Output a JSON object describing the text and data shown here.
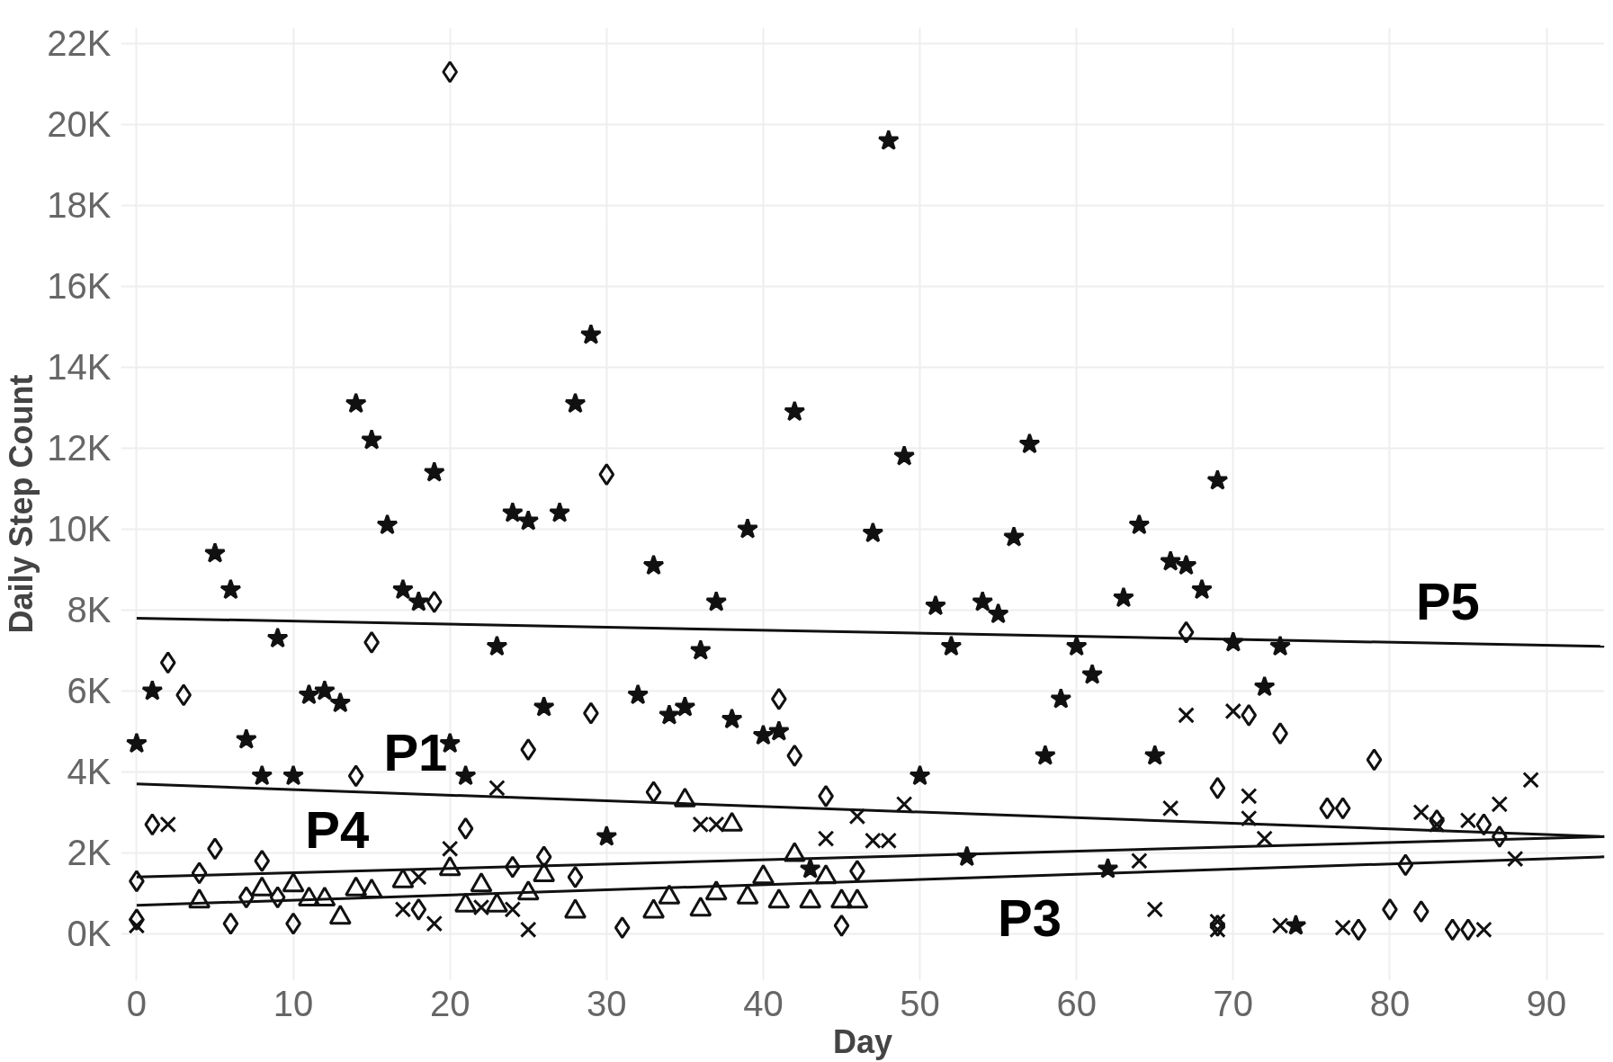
{
  "chart_data": {
    "type": "scatter",
    "xlabel": "Day",
    "ylabel": "Daily Step Count",
    "xlim": [
      -1,
      93.7
    ],
    "ylim": [
      -1160,
      22400
    ],
    "xticks": [
      0,
      10,
      20,
      30,
      40,
      50,
      60,
      70,
      80,
      90
    ],
    "yticks": [
      {
        "value": 0,
        "label": "0K"
      },
      {
        "value": 2000,
        "label": "2K"
      },
      {
        "value": 4000,
        "label": "4K"
      },
      {
        "value": 6000,
        "label": "6K"
      },
      {
        "value": 8000,
        "label": "8K"
      },
      {
        "value": 10000,
        "label": "10K"
      },
      {
        "value": 12000,
        "label": "12K"
      },
      {
        "value": 14000,
        "label": "14K"
      },
      {
        "value": 16000,
        "label": "16K"
      },
      {
        "value": 18000,
        "label": "18K"
      },
      {
        "value": 20000,
        "label": "20K"
      },
      {
        "value": 22000,
        "label": "22K"
      }
    ],
    "grid": true,
    "series": [
      {
        "color": "#111111",
        "marker": "star",
        "x": [
          0,
          1,
          5,
          6,
          7,
          8,
          9,
          10,
          11,
          12,
          13,
          14,
          15,
          16,
          17,
          18,
          19,
          20,
          21,
          23,
          24,
          25,
          26,
          27,
          28,
          29,
          30,
          32,
          33,
          34,
          35,
          36,
          37,
          38,
          39,
          40,
          41,
          42,
          43,
          47,
          48,
          49,
          50,
          51,
          52,
          53,
          54,
          55,
          56,
          57,
          58,
          59,
          60,
          61,
          62,
          63,
          64,
          65,
          66,
          67,
          68,
          69,
          70,
          72,
          73,
          74
        ],
        "values": [
          4700,
          6000,
          9400,
          8500,
          4800,
          3900,
          7300,
          3900,
          5900,
          6000,
          5700,
          13100,
          12200,
          10100,
          8500,
          8200,
          11400,
          4700,
          3900,
          7100,
          10400,
          10200,
          5600,
          10400,
          13100,
          14800,
          2400,
          5900,
          9100,
          5400,
          5600,
          7000,
          8200,
          5300,
          10000,
          4900,
          5000,
          12900,
          1600,
          9900,
          19600,
          11800,
          3900,
          8100,
          7100,
          1900,
          8200,
          7900,
          9800,
          12100,
          4400,
          5800,
          7100,
          6400,
          1600,
          8300,
          10100,
          4400,
          9200,
          9100,
          8500,
          11200,
          7200,
          6100,
          7100,
          200
        ]
      },
      {
        "color": "#111111",
        "marker": "diamond",
        "x": [
          0,
          0,
          1,
          2,
          3,
          4,
          5,
          6,
          7,
          8,
          9,
          10,
          14,
          15,
          18,
          19,
          20,
          21,
          24,
          25,
          26,
          28,
          29,
          30,
          31,
          33,
          41,
          42,
          44,
          45,
          46,
          67,
          69,
          69,
          71,
          73,
          76,
          77,
          78,
          79,
          80,
          81,
          82,
          83,
          84,
          85,
          86,
          87
        ],
        "values": [
          1300,
          350,
          2700,
          6700,
          5900,
          1500,
          2100,
          250,
          900,
          1800,
          900,
          250,
          3900,
          7200,
          600,
          8200,
          21300,
          2600,
          1650,
          4550,
          1900,
          1400,
          5450,
          11350,
          150,
          3500,
          5800,
          4400,
          3400,
          200,
          1550,
          7450,
          3600,
          200,
          5400,
          4950,
          3100,
          3100,
          100,
          4300,
          600,
          1700,
          550,
          2800,
          100,
          100,
          2700,
          2400
        ]
      },
      {
        "color": "#111111",
        "marker": "cross",
        "x": [
          0,
          2,
          17,
          18,
          19,
          20,
          22,
          23,
          24,
          25,
          36,
          37,
          44,
          46,
          47,
          48,
          49,
          64,
          65,
          66,
          67,
          69,
          69,
          70,
          71,
          71,
          72,
          73,
          77,
          82,
          83,
          85,
          86,
          87,
          88,
          89
        ],
        "values": [
          200,
          2700,
          600,
          1400,
          250,
          2100,
          650,
          3600,
          600,
          100,
          2700,
          2700,
          2350,
          2900,
          2300,
          2300,
          3200,
          1800,
          600,
          3100,
          5400,
          100,
          300,
          5500,
          2850,
          3400,
          2350,
          200,
          150,
          3000,
          2700,
          2800,
          100,
          3200,
          1850,
          3800
        ]
      },
      {
        "color": "#111111",
        "marker": "triangle",
        "x": [
          4,
          8,
          10,
          11,
          12,
          13,
          14,
          15,
          17,
          20,
          21,
          22,
          23,
          25,
          26,
          28,
          33,
          34,
          35,
          36,
          37,
          38,
          39,
          40,
          41,
          42,
          43,
          44,
          45,
          46
        ],
        "values": [
          800,
          1100,
          1200,
          850,
          850,
          400,
          1100,
          1050,
          1300,
          1600,
          700,
          1200,
          700,
          1000,
          1450,
          550,
          550,
          900,
          3300,
          600,
          1000,
          2700,
          900,
          1400,
          800,
          1950,
          800,
          1400,
          800,
          800
        ]
      },
      {
        "type": "line",
        "color": "#111111",
        "x": [
          0,
          93.7
        ],
        "values": [
          7800,
          7100
        ]
      },
      {
        "type": "line",
        "color": "#111111",
        "x": [
          0,
          93.7
        ],
        "values": [
          3700,
          2400
        ]
      },
      {
        "type": "line",
        "color": "#111111",
        "x": [
          0,
          93.7
        ],
        "values": [
          1400,
          2400
        ]
      },
      {
        "type": "line",
        "color": "#111111",
        "x": [
          0,
          93.7
        ],
        "values": [
          700,
          1900
        ]
      }
    ],
    "annotations": [
      {
        "text": "P5",
        "x": 83.7,
        "y": 7175
      },
      {
        "text": "P1",
        "x": 17.8,
        "y": 3453
      },
      {
        "text": "P4",
        "x": 12.8,
        "y": 1537
      },
      {
        "text": "P3",
        "x": 57,
        "y": 1430
      }
    ]
  }
}
